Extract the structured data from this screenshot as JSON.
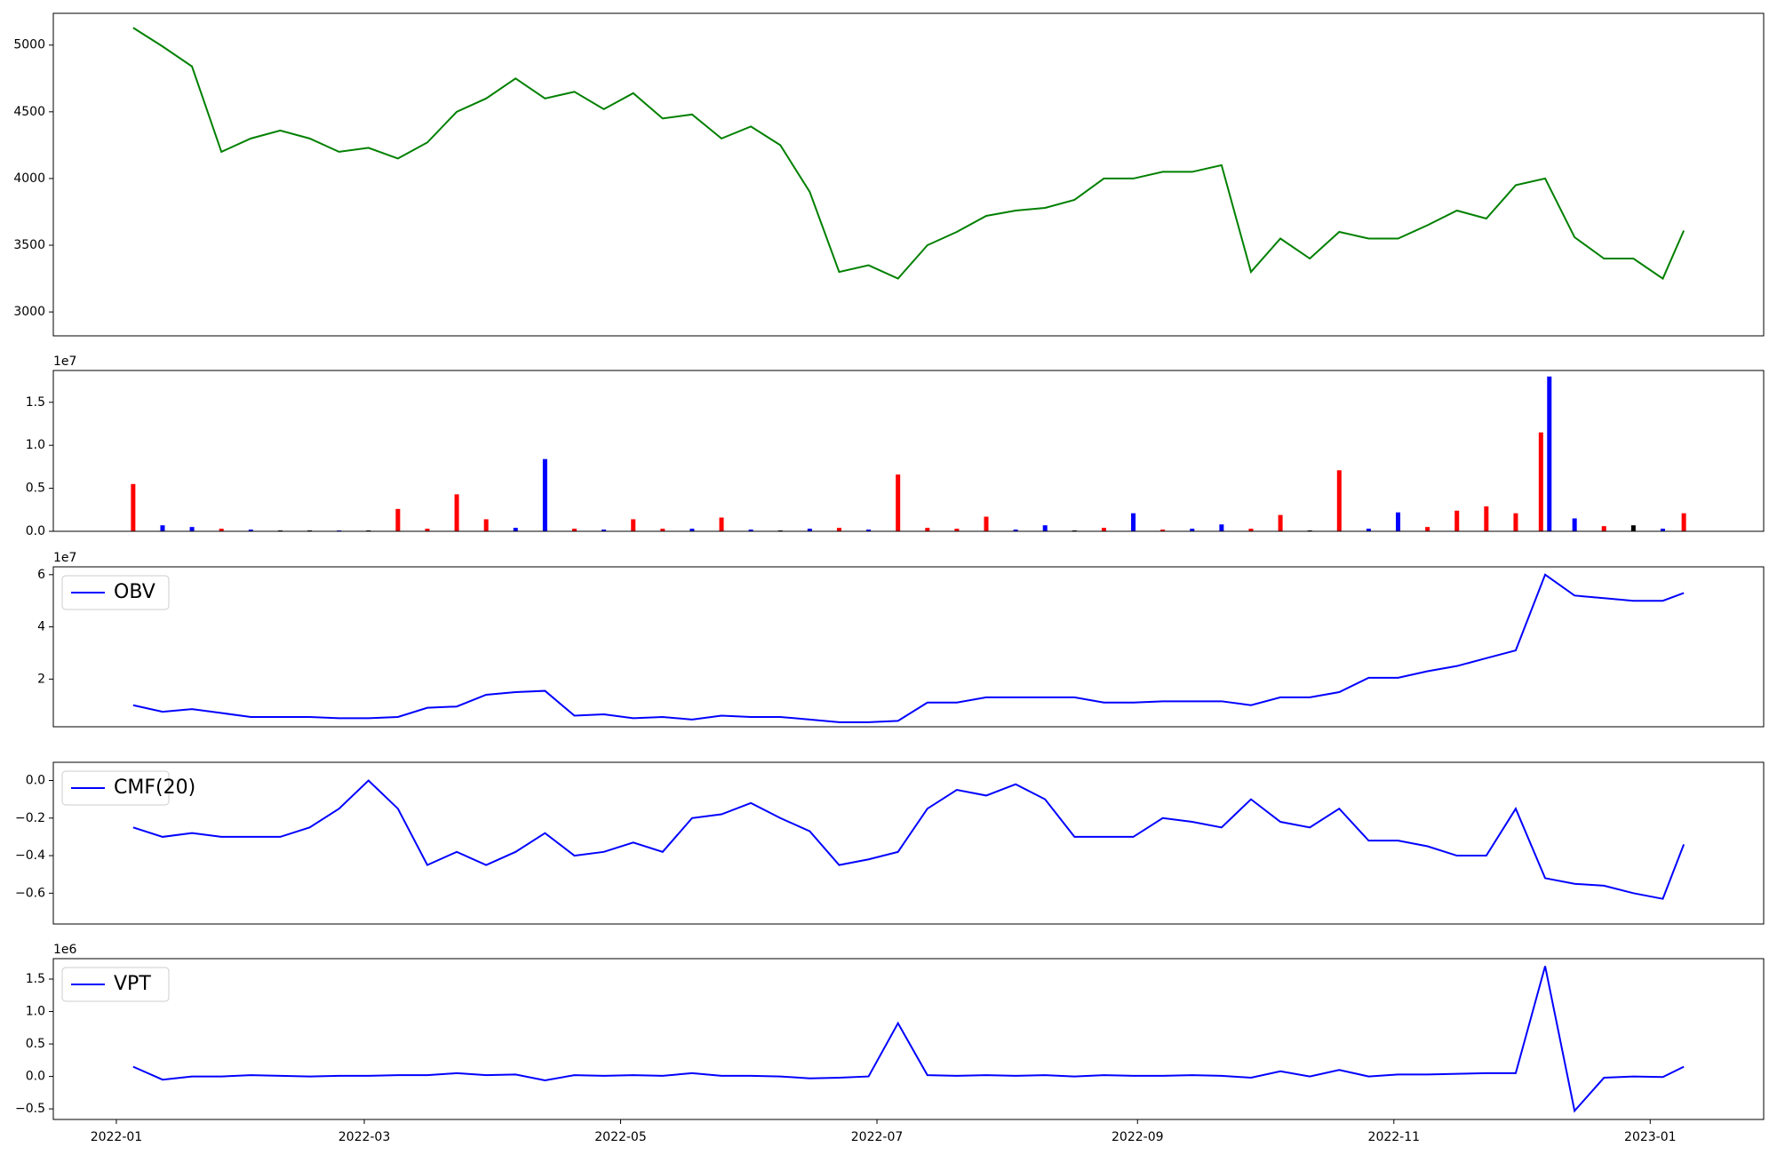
{
  "chart_data": [
    {
      "type": "line",
      "color": "#008000",
      "x": [
        4,
        11,
        18,
        25,
        32,
        39,
        46,
        53,
        60,
        67,
        74,
        81,
        88,
        95,
        102,
        109,
        116,
        123,
        130,
        137,
        144,
        151,
        158,
        165,
        172,
        179,
        186,
        193,
        200,
        207,
        214,
        221,
        228,
        235,
        242,
        249,
        256,
        263,
        270,
        277,
        284,
        291,
        298,
        305,
        312,
        319,
        326,
        333,
        340,
        347,
        354,
        361,
        368,
        373
      ],
      "values": [
        5130,
        4990,
        4840,
        4200,
        4300,
        4360,
        4300,
        4200,
        4230,
        4150,
        4270,
        4500,
        4600,
        4750,
        4600,
        4650,
        4520,
        4640,
        4450,
        4480,
        4300,
        4390,
        4250,
        3900,
        3300,
        3350,
        3250,
        3500,
        3600,
        3720,
        3760,
        3780,
        3840,
        4000,
        4000,
        4050,
        4050,
        4100,
        3300,
        3550,
        3400,
        3600,
        3550,
        3550,
        3650,
        3760,
        3700,
        3950,
        4000,
        3560,
        3400,
        3400,
        3250,
        3610
      ],
      "xlim": [
        -15,
        392
      ],
      "ylim": [
        2821,
        5238
      ],
      "yticks": [
        3000,
        3500,
        4000,
        4500,
        5000
      ]
    },
    {
      "type": "bar",
      "offset_text": "1e7",
      "x": [
        4,
        11,
        18,
        25,
        32,
        39,
        46,
        53,
        60,
        67,
        74,
        81,
        88,
        95,
        102,
        109,
        116,
        123,
        130,
        137,
        144,
        151,
        158,
        165,
        172,
        179,
        186,
        193,
        200,
        207,
        214,
        221,
        228,
        235,
        242,
        249,
        256,
        263,
        270,
        277,
        284,
        291,
        298,
        305,
        312,
        319,
        326,
        333,
        339,
        341,
        347,
        354,
        361,
        368,
        373
      ],
      "values": [
        5500000,
        700000,
        500000,
        300000,
        200000,
        100000,
        100000,
        100000,
        100000,
        2600000,
        300000,
        4300000,
        1400000,
        400000,
        8400000,
        300000,
        200000,
        1400000,
        300000,
        300000,
        1600000,
        200000,
        100000,
        300000,
        400000,
        200000,
        6600000,
        400000,
        300000,
        1700000,
        200000,
        700000,
        100000,
        400000,
        2100000,
        200000,
        300000,
        800000,
        300000,
        1900000,
        100000,
        7100000,
        300000,
        2200000,
        500000,
        2400000,
        2900000,
        2100000,
        11500000,
        18000000,
        1500000,
        600000,
        700000,
        300000,
        2100000
      ],
      "colors": [
        "red",
        "blue",
        "blue",
        "red",
        "blue",
        "black",
        "black",
        "blue",
        "black",
        "red",
        "red",
        "red",
        "red",
        "blue",
        "blue",
        "red",
        "blue",
        "red",
        "red",
        "blue",
        "red",
        "blue",
        "black",
        "blue",
        "red",
        "blue",
        "red",
        "red",
        "red",
        "red",
        "blue",
        "blue",
        "black",
        "red",
        "blue",
        "red",
        "blue",
        "blue",
        "red",
        "red",
        "black",
        "red",
        "blue",
        "blue",
        "red",
        "red",
        "red",
        "red",
        "red",
        "blue",
        "blue",
        "red",
        "black",
        "blue",
        "red"
      ],
      "xlim": [
        -15,
        392
      ],
      "ylim": [
        0,
        18700000
      ],
      "yticks": [
        {
          "value": 0,
          "label": "0.0"
        },
        {
          "value": 5000000,
          "label": "0.5"
        },
        {
          "value": 10000000,
          "label": "1.0"
        },
        {
          "value": 15000000,
          "label": "1.5"
        }
      ]
    },
    {
      "type": "line",
      "offset_text": "1e7",
      "legend": "upper left",
      "x": [
        4,
        11,
        18,
        25,
        32,
        39,
        46,
        53,
        60,
        67,
        74,
        81,
        88,
        95,
        102,
        109,
        116,
        123,
        130,
        137,
        144,
        151,
        158,
        165,
        172,
        179,
        186,
        193,
        200,
        207,
        214,
        221,
        228,
        235,
        242,
        249,
        256,
        263,
        270,
        277,
        284,
        291,
        298,
        305,
        312,
        319,
        326,
        333,
        340,
        347,
        354,
        361,
        368,
        373
      ],
      "series": [
        {
          "name": "OBV",
          "color": "#0000ff",
          "values": [
            10000000,
            7500000,
            8500000,
            7000000,
            5500000,
            5500000,
            5500000,
            5000000,
            5000000,
            5500000,
            9000000,
            9500000,
            14000000,
            15000000,
            15500000,
            6000000,
            6500000,
            5000000,
            5500000,
            4500000,
            6000000,
            5500000,
            5500000,
            4500000,
            3500000,
            3500000,
            4000000,
            11000000,
            11000000,
            13000000,
            13000000,
            13000000,
            13000000,
            11000000,
            11000000,
            11500000,
            11500000,
            11500000,
            10000000,
            13000000,
            13000000,
            15000000,
            20500000,
            20500000,
            23000000,
            25000000,
            28000000,
            31000000,
            60000000,
            52000000,
            51000000,
            50000000,
            50000000,
            53000000
          ]
        }
      ],
      "xlim": [
        -15,
        392
      ],
      "ylim": [
        1740000,
        63000000
      ],
      "yticks": [
        {
          "value": 20000000,
          "label": "2"
        },
        {
          "value": 40000000,
          "label": "4"
        },
        {
          "value": 60000000,
          "label": "6"
        }
      ]
    },
    {
      "type": "line",
      "legend": "upper left",
      "x": [
        4,
        11,
        18,
        25,
        32,
        39,
        46,
        53,
        60,
        67,
        74,
        81,
        88,
        95,
        102,
        109,
        116,
        123,
        130,
        137,
        144,
        151,
        158,
        165,
        172,
        179,
        186,
        193,
        200,
        207,
        214,
        221,
        228,
        235,
        242,
        249,
        256,
        263,
        270,
        277,
        284,
        291,
        298,
        305,
        312,
        319,
        326,
        333,
        340,
        347,
        354,
        361,
        368,
        373
      ],
      "series": [
        {
          "name": "CMF(20)",
          "color": "#0000ff",
          "values": [
            -0.25,
            -0.3,
            -0.28,
            -0.3,
            -0.3,
            -0.3,
            -0.25,
            -0.15,
            0.0,
            -0.15,
            -0.45,
            -0.38,
            -0.45,
            -0.38,
            -0.28,
            -0.4,
            -0.38,
            -0.33,
            -0.38,
            -0.2,
            -0.18,
            -0.12,
            -0.2,
            -0.27,
            -0.45,
            -0.42,
            -0.38,
            -0.15,
            -0.05,
            -0.08,
            -0.02,
            -0.1,
            -0.3,
            -0.3,
            -0.3,
            -0.2,
            -0.22,
            -0.25,
            -0.1,
            -0.22,
            -0.25,
            -0.15,
            -0.32,
            -0.32,
            -0.35,
            -0.4,
            -0.4,
            -0.15,
            -0.52,
            -0.55,
            -0.56,
            -0.6,
            -0.63,
            -0.34
          ]
        }
      ],
      "xlim": [
        -15,
        392
      ],
      "ylim": [
        -0.764,
        0.097
      ],
      "yticks": [
        {
          "value": 0,
          "label": "0.0"
        },
        {
          "value": -0.2,
          "label": "−0.2"
        },
        {
          "value": -0.4,
          "label": "−0.4"
        },
        {
          "value": -0.6,
          "label": "−0.6"
        }
      ]
    },
    {
      "type": "line",
      "offset_text": "1e6",
      "legend": "upper left",
      "x": [
        4,
        11,
        18,
        25,
        32,
        39,
        46,
        53,
        60,
        67,
        74,
        81,
        88,
        95,
        102,
        109,
        116,
        123,
        130,
        137,
        144,
        151,
        158,
        165,
        172,
        179,
        186,
        193,
        200,
        207,
        214,
        221,
        228,
        235,
        242,
        249,
        256,
        263,
        270,
        277,
        284,
        291,
        298,
        305,
        312,
        319,
        326,
        333,
        340,
        347,
        354,
        361,
        368,
        373
      ],
      "series": [
        {
          "name": "VPT",
          "color": "#0000ff",
          "values": [
            150000,
            -50000,
            0,
            0,
            20000,
            10000,
            0,
            10000,
            10000,
            20000,
            20000,
            50000,
            20000,
            30000,
            -60000,
            20000,
            10000,
            20000,
            10000,
            50000,
            10000,
            10000,
            0,
            -30000,
            -20000,
            0,
            820000,
            20000,
            10000,
            20000,
            10000,
            20000,
            0,
            20000,
            10000,
            10000,
            20000,
            10000,
            -20000,
            80000,
            0,
            100000,
            0,
            30000,
            30000,
            40000,
            50000,
            50000,
            1700000,
            -530000,
            -20000,
            0,
            -10000,
            150000
          ]
        }
      ],
      "xlim": [
        -15,
        392
      ],
      "ylim": [
        -663000,
        1815000
      ],
      "yticks": [
        {
          "value": -500000,
          "label": "−0.5"
        },
        {
          "value": 0,
          "label": "0.0"
        },
        {
          "value": 500000,
          "label": "0.5"
        },
        {
          "value": 1000000,
          "label": "1.0"
        },
        {
          "value": 1500000,
          "label": "1.5"
        }
      ],
      "xticks": [
        {
          "value": 0,
          "label": "2022-01"
        },
        {
          "value": 59,
          "label": "2022-03"
        },
        {
          "value": 120,
          "label": "2022-05"
        },
        {
          "value": 181,
          "label": "2022-07"
        },
        {
          "value": 243,
          "label": "2022-09"
        },
        {
          "value": 304,
          "label": "2022-11"
        },
        {
          "value": 365,
          "label": "2023-01"
        }
      ]
    }
  ]
}
